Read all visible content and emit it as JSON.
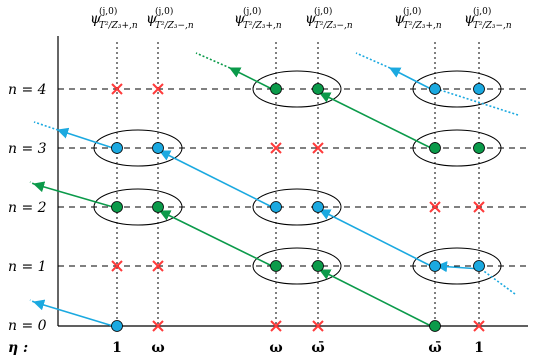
{
  "headers": {
    "group1": [
      {
        "psi": "ψ",
        "sup": "(j,0)",
        "sub": "T²/Z₃+,n"
      },
      {
        "psi": "ψ",
        "sup": "(j,0)",
        "sub": "T²/Z₃−,n"
      }
    ],
    "group2": [
      {
        "psi": "ψ",
        "sup": "(j,0)",
        "sub": "T²/Z₃+,n"
      },
      {
        "psi": "ψ",
        "sup": "(j,0)",
        "sub": "T²/Z₃−,n"
      }
    ],
    "group3": [
      {
        "psi": "ψ",
        "sup": "(j,0)",
        "sub": "T²/Z₃+,n"
      },
      {
        "psi": "ψ",
        "sup": "(j,0)",
        "sub": "T²/Z₃−,n"
      }
    ]
  },
  "rows": [
    "n = 4",
    "n = 3",
    "n = 2",
    "n = 1",
    "n = 0"
  ],
  "eta": {
    "label": "η :",
    "values": [
      "1",
      "ω",
      "ω",
      "ω̄",
      "ω̄",
      "1"
    ]
  },
  "colors": {
    "blue": "#1ba9e0",
    "green": "#0b9a4a",
    "cross": "#ff3b3b",
    "line": "#000000"
  },
  "columns": [
    {
      "row4": "cross",
      "row3": "blue",
      "row2": "green",
      "row1": "cross",
      "row0": "blue"
    },
    {
      "row4": "cross",
      "row3": "blue",
      "row2": "green",
      "row1": "cross",
      "row0": "cross"
    },
    {
      "row4": "green",
      "row3": "cross",
      "row2": "blue",
      "row1": "green",
      "row0": "cross"
    },
    {
      "row4": "green",
      "row3": "cross",
      "row2": "blue",
      "row1": "green",
      "row0": "cross"
    },
    {
      "row4": "blue",
      "row3": "green",
      "row2": "cross",
      "row1": "blue",
      "row0": "green"
    },
    {
      "row4": "blue",
      "row3": "green",
      "row2": "cross",
      "row1": "blue",
      "row0": "cross"
    }
  ]
}
